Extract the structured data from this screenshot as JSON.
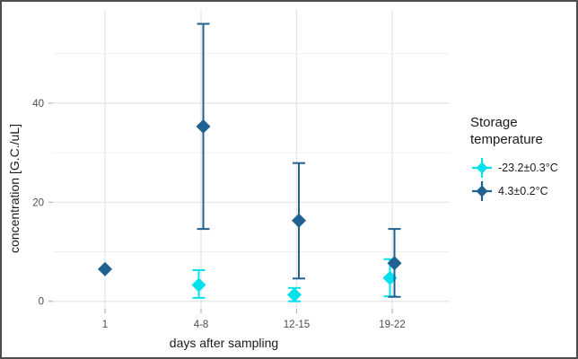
{
  "figure": {
    "background": "#ffffff",
    "border_color": "#4d4d4d",
    "grid_major_color": "#e4e4e4",
    "grid_minor_color": "#f0f0f0",
    "tick_color": "#b5b5b5",
    "tick_label_color": "#4d4d4d"
  },
  "chart_data": {
    "type": "scatter",
    "subtype": "pointrange-errorbar",
    "title": "",
    "xlabel": "days after sampling",
    "ylabel": "concentration [G.C./uL]",
    "categories": [
      "1",
      "4-8",
      "12-15",
      "19-22"
    ],
    "yticks": [
      0,
      20,
      40
    ],
    "minor_yticks": [
      10,
      30,
      50
    ],
    "ylim": [
      -1.5,
      59
    ],
    "grid": true,
    "legend_position": "right",
    "legend_title": "Storage temperature",
    "series": [
      {
        "name": "-23.2±0.3°C",
        "color": "#00e1ec",
        "dodge": -2.5,
        "points": [
          {
            "category": "1",
            "y": null,
            "lo": null,
            "hi": null
          },
          {
            "category": "4-8",
            "y": 3.3,
            "lo": 0.7,
            "hi": 6.3
          },
          {
            "category": "12-15",
            "y": 1.3,
            "lo": 0.0,
            "hi": 2.7
          },
          {
            "category": "19-22",
            "y": 4.7,
            "lo": 1.0,
            "hi": 8.5
          }
        ]
      },
      {
        "name": "4.3±0.2°C",
        "color": "#1f6191",
        "dodge": 2.5,
        "points": [
          {
            "category": "1",
            "y": 6.5,
            "lo": null,
            "hi": null
          },
          {
            "category": "4-8",
            "y": 35.3,
            "lo": 14.6,
            "hi": 56.0
          },
          {
            "category": "12-15",
            "y": 16.3,
            "lo": 4.6,
            "hi": 27.9
          },
          {
            "category": "19-22",
            "y": 7.7,
            "lo": 0.9,
            "hi": 14.6
          }
        ]
      }
    ]
  }
}
